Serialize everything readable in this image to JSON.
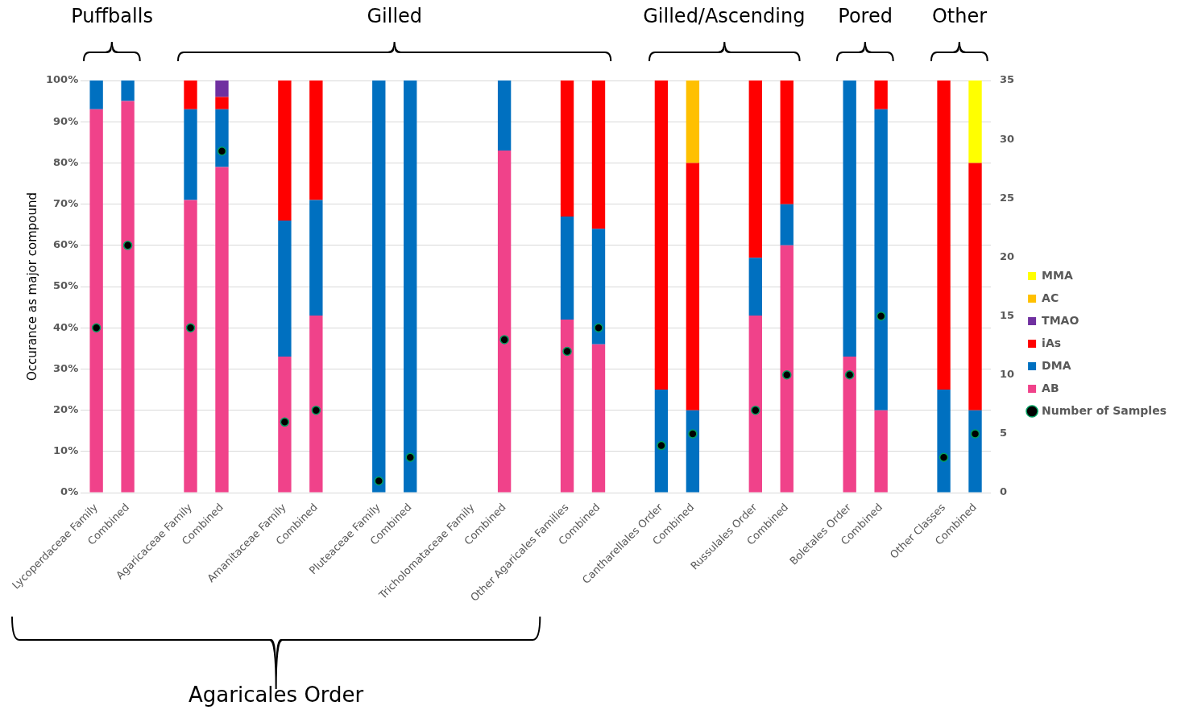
{
  "chart_data": {
    "type": "bar",
    "stacked": true,
    "categories": [
      "Lycoperdaceae Family",
      "Combined",
      null,
      "Agaricaceae Family",
      "Combined",
      null,
      "Amanitaceae Family",
      "Combined",
      null,
      "Pluteaceae Family",
      "Combined",
      null,
      "Tricholomataceae Family",
      "Combined",
      null,
      "Other Agaricales Families",
      "Combined",
      null,
      "Cantharellales Order",
      "Combined",
      null,
      "Russulales Order",
      "Combined",
      null,
      "Boletales Order",
      "Combined",
      null,
      "Other Classes",
      "Combined"
    ],
    "series": [
      {
        "name": "AB",
        "color": "#f0428a",
        "values": [
          93,
          95,
          null,
          71,
          79,
          null,
          33,
          43,
          null,
          null,
          null,
          null,
          null,
          83,
          null,
          42,
          36,
          null,
          null,
          null,
          null,
          43,
          60,
          null,
          33,
          20,
          null,
          null,
          null
        ]
      },
      {
        "name": "DMA",
        "color": "#0070c0",
        "values": [
          7,
          5,
          null,
          22,
          14,
          null,
          33,
          28,
          null,
          100,
          100,
          null,
          null,
          17,
          null,
          25,
          28,
          null,
          25,
          20,
          null,
          14,
          10,
          null,
          67,
          73,
          null,
          25,
          20
        ]
      },
      {
        "name": "iAs",
        "color": "#ff0000",
        "values": [
          null,
          null,
          null,
          7,
          3,
          null,
          34,
          29,
          null,
          null,
          null,
          null,
          null,
          null,
          null,
          33,
          36,
          null,
          75,
          60,
          null,
          43,
          30,
          null,
          null,
          7,
          null,
          75,
          60
        ]
      },
      {
        "name": "TMAO",
        "color": "#7030a0",
        "values": [
          null,
          null,
          null,
          null,
          4,
          null,
          null,
          null,
          null,
          null,
          null,
          null,
          null,
          null,
          null,
          null,
          null,
          null,
          null,
          null,
          null,
          null,
          null,
          null,
          null,
          null,
          null,
          null,
          null
        ]
      },
      {
        "name": "AC",
        "color": "#ffc000",
        "values": [
          null,
          null,
          null,
          null,
          null,
          null,
          null,
          null,
          null,
          null,
          null,
          null,
          null,
          null,
          null,
          null,
          null,
          null,
          null,
          20,
          null,
          null,
          null,
          null,
          null,
          null,
          null,
          null,
          null
        ]
      },
      {
        "name": "MMA",
        "color": "#ffff00",
        "values": [
          null,
          null,
          null,
          null,
          null,
          null,
          null,
          null,
          null,
          null,
          null,
          null,
          null,
          null,
          null,
          null,
          null,
          null,
          null,
          null,
          null,
          null,
          null,
          null,
          null,
          null,
          null,
          null,
          20
        ]
      },
      {
        "name": "Number of Samples",
        "type": "scatter",
        "axis": "y2",
        "marker": "circle",
        "color": "#000000",
        "values": [
          14,
          21,
          null,
          14,
          29,
          null,
          6,
          7,
          null,
          1,
          3,
          null,
          null,
          13,
          null,
          12,
          14,
          null,
          4,
          5,
          null,
          7,
          10,
          null,
          10,
          15,
          null,
          3,
          5
        ]
      }
    ],
    "ylabel": "Occurance as major compound",
    "ylim": [
      0,
      100
    ],
    "yticks": [
      {
        "value": 0,
        "label": "0%"
      },
      {
        "value": 10,
        "label": "10%"
      },
      {
        "value": 20,
        "label": "20%"
      },
      {
        "value": 30,
        "label": "30%"
      },
      {
        "value": 40,
        "label": "40%"
      },
      {
        "value": 50,
        "label": "50%"
      },
      {
        "value": 60,
        "label": "60%"
      },
      {
        "value": 70,
        "label": "70%"
      },
      {
        "value": 80,
        "label": "80%"
      },
      {
        "value": 90,
        "label": "90%"
      },
      {
        "value": 100,
        "label": "100%"
      }
    ],
    "y2lim": [
      0,
      35
    ],
    "y2ticks": [
      0,
      5,
      10,
      15,
      20,
      25,
      30,
      35
    ],
    "grid": "y",
    "legend": "right",
    "annotations": [
      "Puffballs",
      "Gilled",
      "Gilled/Ascending",
      "Pored",
      "Other",
      "Agaricales Order"
    ]
  }
}
